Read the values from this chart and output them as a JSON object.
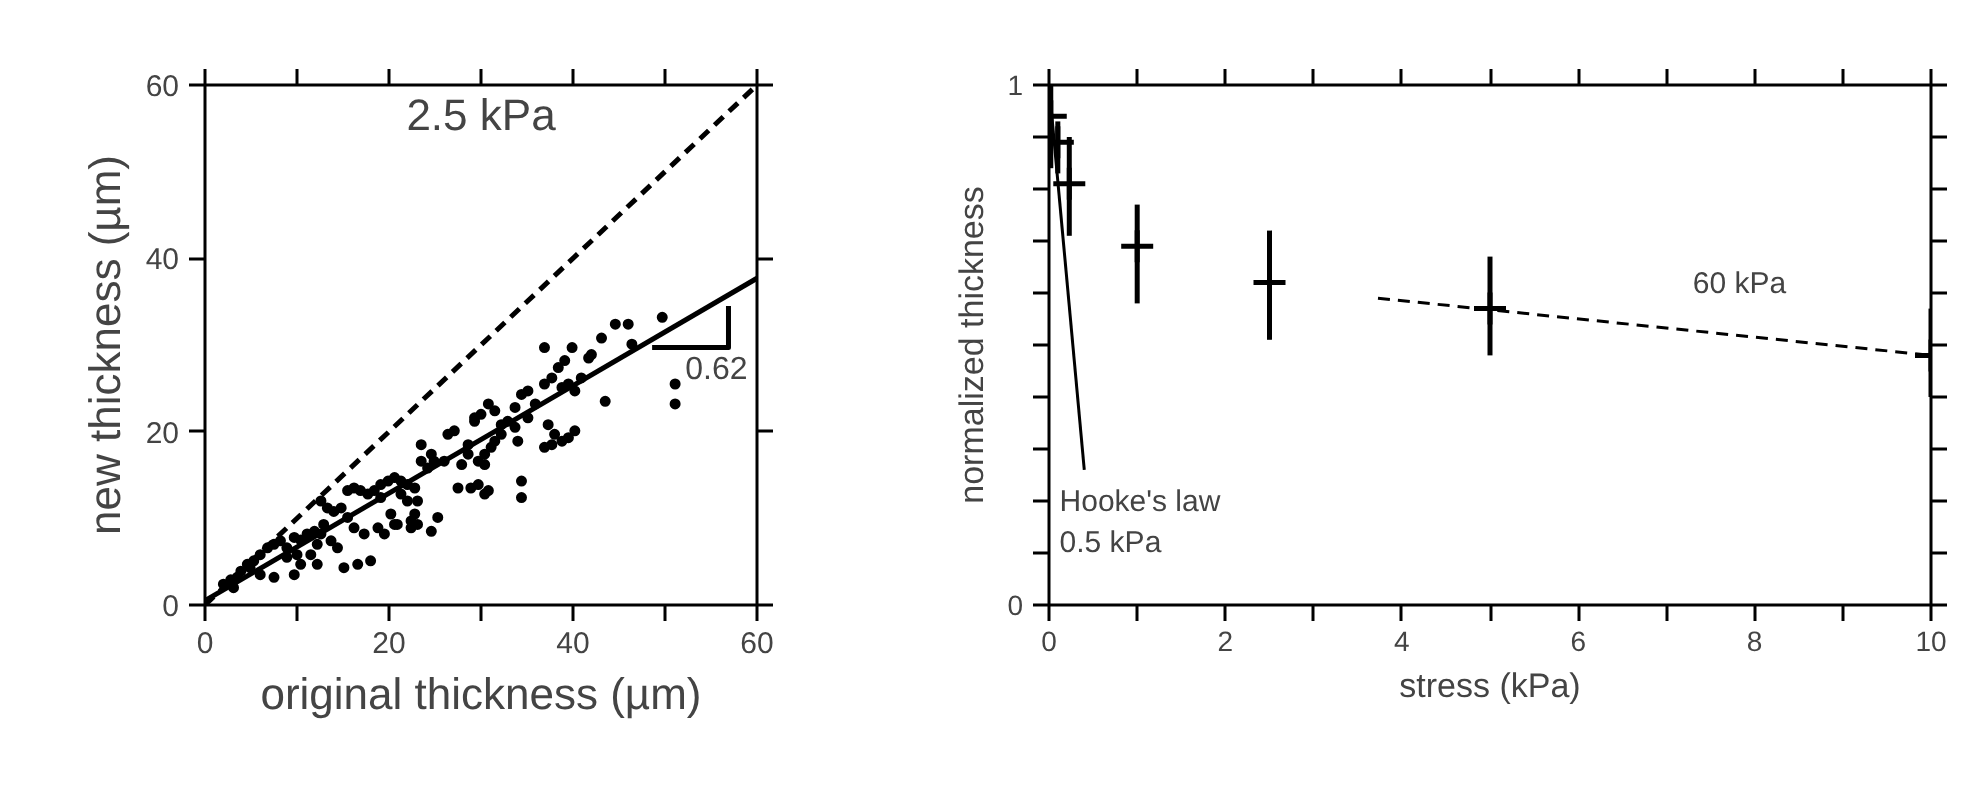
{
  "chart_data": [
    {
      "type": "scatter",
      "title": "2.5 kPa",
      "xlabel": "original thickness (µm)",
      "ylabel": "new thickness (µm)",
      "xlim": [
        0,
        60
      ],
      "ylim": [
        0,
        60
      ],
      "xticks": [
        0,
        {
          "value": 10,
          "label": null
        },
        20,
        {
          "value": 30,
          "label": null
        },
        40,
        {
          "value": 50,
          "label": null
        },
        60
      ],
      "yticks": [
        0,
        20,
        40,
        60
      ],
      "grid": false,
      "series": [
        {
          "color": "#000000",
          "marker": "circle",
          "x": [
            2.0,
            2.8,
            3.9,
            4.6,
            5.3,
            6.0,
            6.8,
            7.5,
            8.2,
            8.9,
            9.7,
            10.4,
            11.1,
            11.9,
            12.6,
            12.9,
            7.5,
            9.7,
            10.4,
            12.2,
            12.6,
            13.3,
            14.0,
            14.8,
            15.5,
            14.4,
            15.1,
            16.6,
            18.0,
            17.3,
            18.8,
            16.9,
            18.4,
            19.1,
            19.9,
            20.6,
            21.3,
            22.0,
            22.8,
            23.1,
            22.8,
            23.1,
            22.4,
            20.9,
            19.5,
            24.6,
            25.3,
            23.5,
            24.6,
            24.9,
            26.4,
            27.1,
            28.6,
            29.7,
            30.4,
            31.1,
            29.3,
            30.0,
            30.8,
            31.5,
            32.2,
            32.9,
            33.7,
            34.4,
            35.1,
            35.9,
            36.9,
            37.7,
            38.8,
            39.5,
            39.9,
            36.9,
            38.4,
            40.9,
            41.7,
            42.0,
            43.1,
            44.6,
            46.0,
            46.4,
            49.7,
            43.5,
            51.1,
            51.1,
            34.4,
            34.4,
            27.5,
            28.9,
            29.7,
            30.4,
            30.8,
            27.9,
            28.6,
            32.2,
            33.7,
            37.3,
            38.0,
            38.8,
            39.5,
            40.2,
            36.9,
            37.7,
            29.3,
            21.3,
            22.0,
            20.6,
            23.5,
            24.2,
            15.5,
            16.2,
            17.7,
            19.1,
            13.7,
            12.2,
            11.5,
            6.0,
            4.9,
            3.5,
            3.1,
            8.9,
            10.0,
            16.2,
            20.2,
            22.4,
            26.0,
            30.4,
            35.1,
            31.5,
            34.0,
            40.2,
            39.1
          ],
          "values": [
            2.4,
            2.9,
            3.9,
            4.7,
            5.1,
            5.8,
            6.6,
            7.0,
            7.4,
            6.6,
            7.8,
            7.5,
            8.2,
            8.5,
            8.2,
            9.3,
            3.2,
            3.5,
            4.7,
            7.0,
            12.0,
            11.2,
            10.8,
            11.2,
            10.1,
            6.6,
            4.3,
            4.7,
            5.1,
            8.2,
            8.9,
            13.2,
            13.2,
            13.9,
            14.3,
            14.7,
            14.3,
            13.9,
            13.5,
            12.0,
            10.5,
            9.3,
            8.9,
            9.3,
            8.2,
            8.5,
            10.1,
            18.5,
            17.4,
            16.6,
            19.7,
            20.1,
            18.5,
            16.6,
            17.4,
            18.2,
            21.2,
            22.0,
            23.2,
            22.4,
            20.8,
            21.2,
            22.8,
            24.3,
            24.7,
            23.2,
            25.5,
            26.2,
            25.1,
            25.5,
            29.7,
            29.7,
            27.4,
            26.2,
            28.5,
            28.9,
            30.8,
            32.4,
            32.4,
            30.1,
            33.2,
            23.5,
            25.5,
            23.2,
            14.3,
            12.4,
            13.5,
            13.5,
            13.9,
            12.8,
            13.2,
            16.2,
            17.4,
            19.7,
            20.5,
            20.8,
            19.7,
            18.9,
            19.3,
            20.1,
            18.2,
            18.5,
            21.6,
            12.8,
            12.0,
            9.3,
            16.6,
            15.8,
            13.2,
            13.5,
            12.8,
            12.4,
            7.4,
            4.7,
            5.8,
            3.5,
            4.3,
            3.2,
            2.0,
            5.5,
            5.8,
            8.9,
            10.5,
            9.7,
            16.6,
            16.2,
            21.6,
            18.9,
            18.9,
            24.7,
            28.2
          ]
        },
        {
          "type": "line",
          "color": "#000000",
          "line_style": "dashed",
          "x": [
            0,
            60
          ],
          "values": [
            0,
            60
          ]
        },
        {
          "type": "line",
          "color": "#000000",
          "line_style": "solid",
          "x": [
            0,
            60
          ],
          "values": [
            0.5,
            37.7
          ]
        },
        {
          "type": "line",
          "color": "#000000",
          "line_style": "solid",
          "x": [
            48.6,
            56.9,
            56.9
          ],
          "values": [
            29.7,
            29.7,
            34.5
          ]
        }
      ],
      "annotations": [
        "0.62"
      ]
    },
    {
      "type": "scatter",
      "xlabel": "stress (kPa)",
      "ylabel": "normalized thickness",
      "xlim": [
        0,
        10
      ],
      "ylim": [
        0,
        1
      ],
      "xticks": [
        0,
        {
          "value": 1,
          "label": null
        },
        2,
        {
          "value": 3,
          "label": null
        },
        4,
        {
          "value": 5,
          "label": null
        },
        6,
        {
          "value": 7,
          "label": null
        },
        8,
        {
          "value": 9,
          "label": null
        },
        10
      ],
      "yticks": [
        0,
        {
          "value": 0.1,
          "label": null
        },
        {
          "value": 0.2,
          "label": null
        },
        {
          "value": 0.3,
          "label": null
        },
        {
          "value": 0.4,
          "label": null
        },
        {
          "value": 0.5,
          "label": null
        },
        {
          "value": 0.6,
          "label": null
        },
        {
          "value": 0.7,
          "label": null
        },
        {
          "value": 0.8,
          "label": null
        },
        {
          "value": 0.9,
          "label": null
        },
        1
      ],
      "grid": false,
      "series": [
        {
          "color": "#000000",
          "marker": "cross",
          "x": [
            0.02,
            0.1,
            0.23,
            1,
            2.5,
            5,
            10
          ],
          "values": [
            0.94,
            0.89,
            0.81,
            0.69,
            0.62,
            0.57,
            0.48
          ],
          "errors": [
            [
              0.84,
              1.0
            ],
            [
              0.83,
              0.93
            ],
            [
              0.71,
              0.9
            ],
            [
              0.58,
              0.77
            ],
            [
              0.51,
              0.72
            ],
            [
              0.48,
              0.67
            ],
            [
              0.4,
              0.57
            ]
          ]
        },
        {
          "type": "line",
          "color": "#000000",
          "line_style": "solid",
          "x": [
            0,
            0.4
          ],
          "values": [
            1.0,
            0.26
          ]
        },
        {
          "type": "line",
          "color": "#000000",
          "line_style": "dashed",
          "x": [
            3.73,
            10
          ],
          "values": [
            0.59,
            0.48
          ]
        }
      ],
      "annotations": [
        "Hooke's law\n0.5 kPa",
        "60 kPa"
      ]
    }
  ]
}
